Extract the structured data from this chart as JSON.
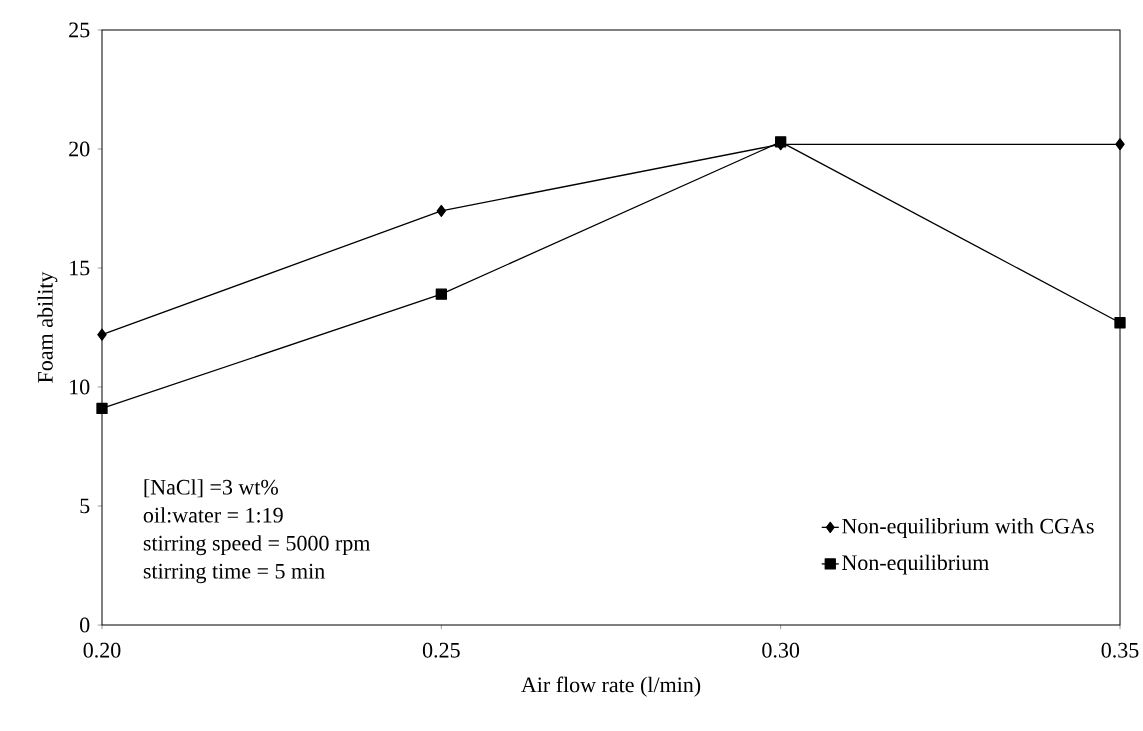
{
  "chart_data": {
    "type": "line",
    "xlabel": "Air flow rate (l/min)",
    "ylabel": "Foam ability",
    "x": [
      0.2,
      0.25,
      0.3,
      0.35
    ],
    "series": [
      {
        "name": "Non-equilibrium with CGAs",
        "color": "#000000",
        "marker": "diamond",
        "values": [
          12.2,
          17.4,
          20.2,
          20.2
        ]
      },
      {
        "name": "Non-equilibrium",
        "color": "#000000",
        "marker": "square",
        "values": [
          9.1,
          13.9,
          20.3,
          12.7
        ]
      }
    ],
    "xlim": [
      0.2,
      0.35
    ],
    "xticks": [
      {
        "value": 0.2,
        "label": "0.20"
      },
      {
        "value": 0.25,
        "label": "0.25"
      },
      {
        "value": 0.3,
        "label": "0.30"
      },
      {
        "value": 0.35,
        "label": "0.35"
      }
    ],
    "ylim": [
      0,
      25
    ],
    "yticks": [
      0,
      5,
      10,
      15,
      20,
      25
    ],
    "legend": "bottom right",
    "line_style": "solid",
    "annotations": [
      "[NaCl] =3 wt%",
      "oil:water = 1:19",
      "stirring speed = 5000 rpm",
      "stirring time = 5 min"
    ]
  }
}
